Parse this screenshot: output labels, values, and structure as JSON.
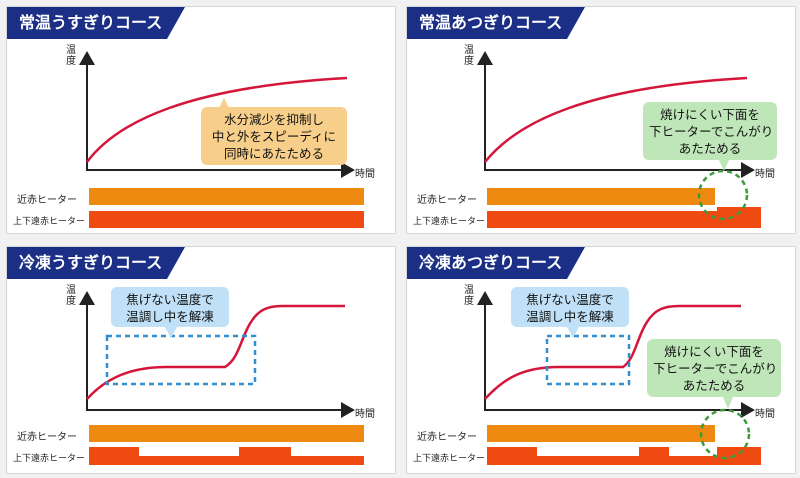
{
  "colors": {
    "curve": "#d5163a",
    "near_bar": "#ef8a10",
    "updown_bar": "#ef4a12",
    "tab": "#1b2f86",
    "dash_blue": "#2f8fd0",
    "dash_green": "#3c9a3c"
  },
  "axis": {
    "y_label": "温度",
    "x_label": "時間"
  },
  "heaters": {
    "near": "近赤ヒーター",
    "updown": "上下遠赤ヒーター"
  },
  "panels": [
    {
      "title": "常温うすぎりコース",
      "bubbles": [
        {
          "color": "orange",
          "lines": [
            "水分減少を抑制し",
            "中と外をスピーディに",
            "同時にあたためる"
          ]
        }
      ]
    },
    {
      "title": "常温あつぎりコース",
      "bubbles": [
        {
          "color": "green",
          "lines": [
            "焼けにくい下面を",
            "下ヒーターでこんがり",
            "あたためる"
          ]
        }
      ]
    },
    {
      "title": "冷凍うすぎりコース",
      "bubbles": [
        {
          "color": "blue",
          "lines": [
            "焦げない温度で",
            "温調し中を解凍"
          ]
        }
      ]
    },
    {
      "title": "冷凍あつぎりコース",
      "bubbles": [
        {
          "color": "blue",
          "lines": [
            "焦げない温度で",
            "温調し中を解凍"
          ]
        },
        {
          "color": "green",
          "lines": [
            "焼けにくい下面を",
            "下ヒーターでこんがり",
            "あたためる"
          ]
        }
      ]
    }
  ]
}
